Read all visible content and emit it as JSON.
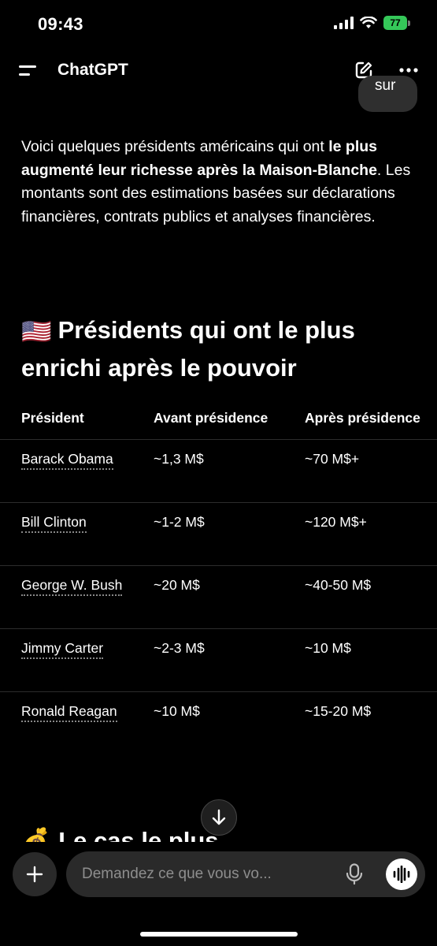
{
  "status_bar": {
    "time": "09:43",
    "battery": "77",
    "icons": [
      "signal-icon",
      "wifi-icon",
      "battery-icon"
    ]
  },
  "header": {
    "title": "ChatGPT",
    "icons": [
      "menu-icon",
      "new-chat-icon",
      "more-icon"
    ]
  },
  "previous_message": {
    "text": "sur"
  },
  "intro": {
    "part1": "Voici quelques présidents américains qui ont ",
    "bold": "le plus augmenté leur richesse après la Maison-Blanche",
    "part2": ". Les montants sont des estimations basées sur déclarations financières, contrats publics et analyses financières."
  },
  "section": {
    "flag": "🇺🇸",
    "title": "Présidents qui ont le plus enrichi après le pouvoir"
  },
  "table": {
    "headers": [
      "Président",
      "Avant présidence",
      "Après présidence"
    ],
    "rows": [
      {
        "president": "Barack Obama",
        "before": "~1,3 M$",
        "after": "~70 M$+"
      },
      {
        "president": "Bill Clinton",
        "before": "~1-2 M$",
        "after": "~120 M$+"
      },
      {
        "president": "George W. Bush",
        "before": "~20 M$",
        "after": "~40-50 M$"
      },
      {
        "president": "Jimmy Carter",
        "before": "~2-3 M$",
        "after": "~10 M$"
      },
      {
        "president": "Ronald Reagan",
        "before": "~10 M$",
        "after": "~15-20 M$"
      }
    ]
  },
  "next_section": {
    "emoji": "💰",
    "title_partial": "Le cas le plus"
  },
  "composer": {
    "placeholder": "Demandez ce que vous vo...",
    "icons": [
      "plus-icon",
      "mic-icon",
      "voice-mode-icon",
      "scroll-down-icon"
    ]
  },
  "colors": {
    "background": "#000000",
    "battery": "#35c759",
    "surface": "#2a2a2a"
  }
}
